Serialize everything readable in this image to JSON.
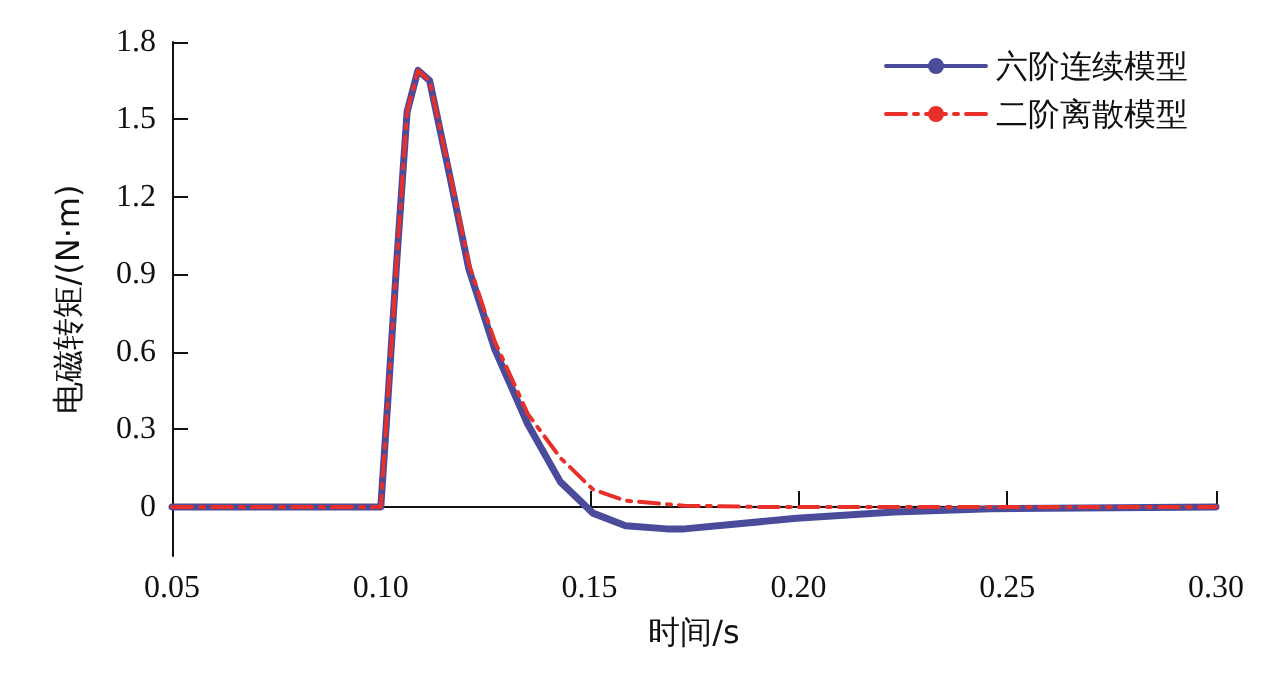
{
  "chart_data": {
    "type": "line",
    "xlabel": "时间/s",
    "ylabel": "电磁转矩/(N·m)",
    "xlim": [
      0.05,
      0.3
    ],
    "xticks": [
      {
        "value": 0.05,
        "label": "0.05"
      },
      {
        "value": 0.1,
        "label": "0.10"
      },
      {
        "value": 0.15,
        "label": "0.15"
      },
      {
        "value": 0.2,
        "label": "0.20"
      },
      {
        "value": 0.25,
        "label": "0.25"
      },
      {
        "value": 0.3,
        "label": "0.30"
      }
    ],
    "ylim": [
      -0.19,
      1.8
    ],
    "yticks": [
      0,
      0.3,
      0.6,
      0.9,
      1.2,
      1.5,
      1.8
    ],
    "grid": false,
    "legend": "top right",
    "marker": "none",
    "series": [
      {
        "name": "六阶连续模型",
        "color": "#4b4b9b",
        "line_style": "solid",
        "x": [
          0.05,
          0.1,
          0.1016,
          0.1039,
          0.1063,
          0.1089,
          0.1117,
          0.1164,
          0.1211,
          0.1273,
          0.1352,
          0.143,
          0.1508,
          0.1586,
          0.1685,
          0.1727,
          0.1996,
          0.223,
          0.246,
          0.3
        ],
        "values": [
          0,
          0,
          0.39,
          0.97,
          1.53,
          1.69,
          1.65,
          1.29,
          0.92,
          0.61,
          0.32,
          0.097,
          -0.024,
          -0.073,
          -0.085,
          -0.085,
          -0.044,
          -0.02,
          -0.007,
          0
        ]
      },
      {
        "name": "二阶离散模型",
        "color": "#e8302a",
        "line_style": "dashed",
        "x": [
          0.05,
          0.1,
          0.1016,
          0.1039,
          0.1063,
          0.1089,
          0.1117,
          0.1164,
          0.1211,
          0.1273,
          0.1352,
          0.143,
          0.1508,
          0.1586,
          0.1727,
          0.19,
          0.3
        ],
        "values": [
          0,
          0,
          0.39,
          0.97,
          1.53,
          1.69,
          1.65,
          1.3,
          0.94,
          0.64,
          0.36,
          0.19,
          0.068,
          0.024,
          0.005,
          0,
          0
        ]
      }
    ]
  }
}
